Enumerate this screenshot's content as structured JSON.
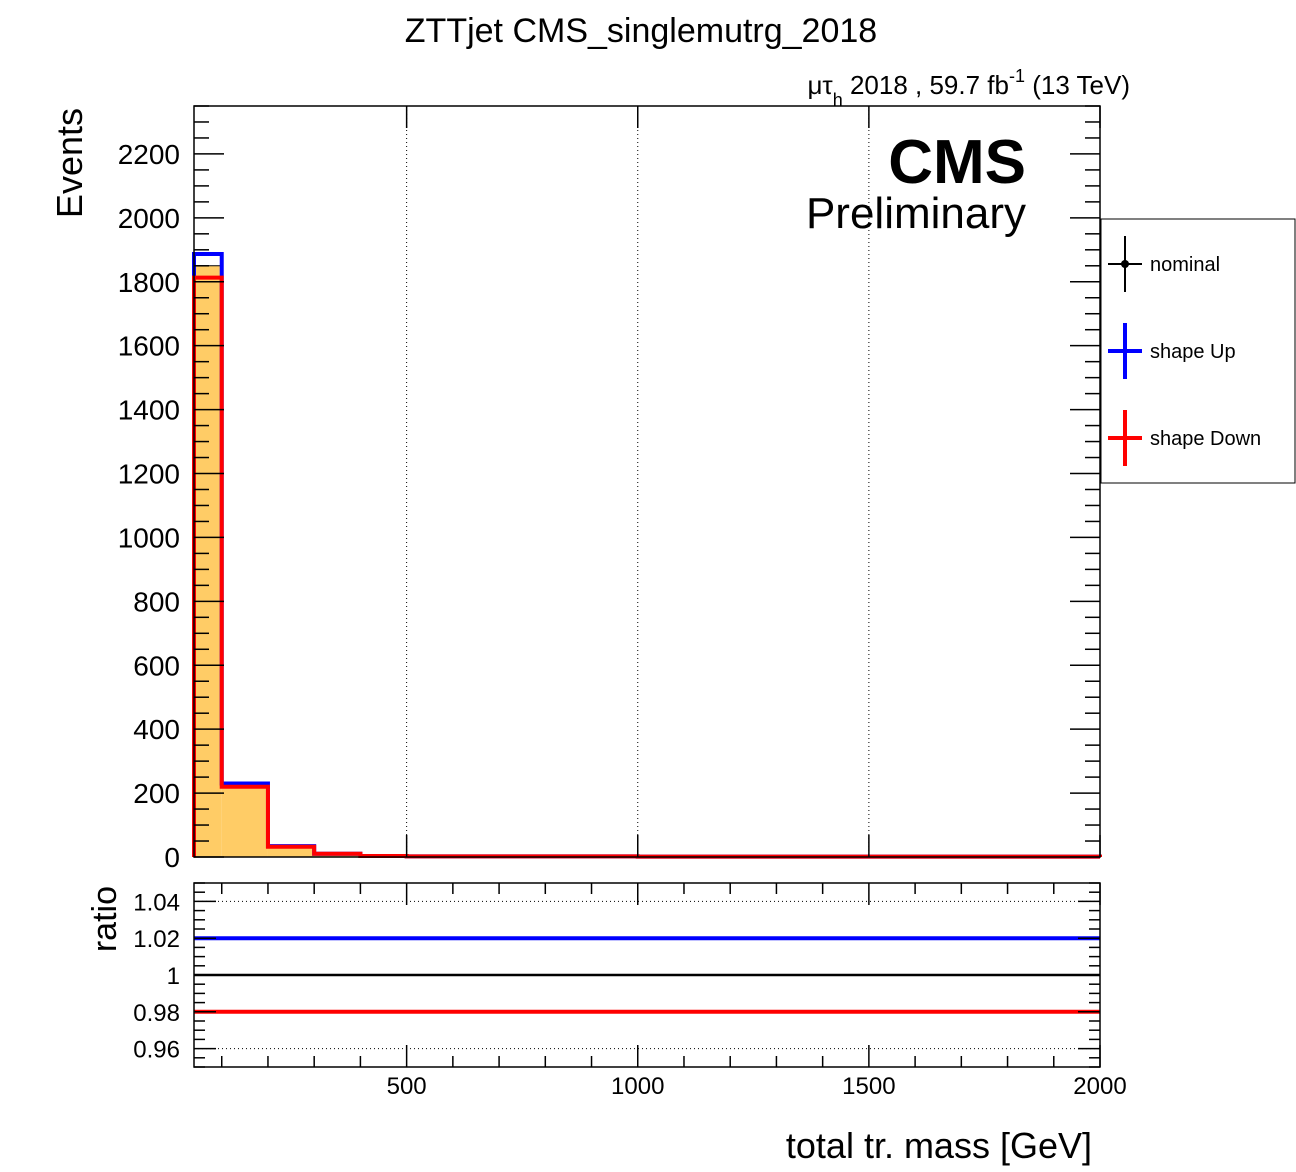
{
  "title": "ZTTjet CMS_singlemutrg_2018",
  "lumi": {
    "channel_mu": "μτ",
    "channel_sub": "h",
    "text": " 2018 , 59.7 fb",
    "sup": "-1",
    "energy": " (13 TeV)"
  },
  "cms_label": "CMS",
  "cms_sublabel": "Preliminary",
  "colors": {
    "nominal": "#000000",
    "up": "#0000ff",
    "down": "#ff0000",
    "fill": "#ffcc66"
  },
  "legend": [
    {
      "label": "nominal",
      "style": "marker",
      "color": "#000000"
    },
    {
      "label": "shape Up",
      "style": "line",
      "color": "#0000ff"
    },
    {
      "label": "shape Down",
      "style": "line",
      "color": "#ff0000"
    }
  ],
  "chart_data": [
    {
      "type": "histogram",
      "ylabel": "Events",
      "xlim": [
        40,
        2000
      ],
      "ylim": [
        0,
        2350
      ],
      "yticks": [
        0,
        200,
        400,
        600,
        800,
        1000,
        1200,
        1400,
        1600,
        1800,
        2000,
        2200
      ],
      "xgrid": [
        500,
        1000,
        1500
      ],
      "bin_edges": [
        40,
        100,
        200,
        300,
        400,
        500,
        1000,
        1500,
        2000
      ],
      "series": [
        {
          "name": "nominal",
          "values": [
            1850,
            225,
            33,
            10,
            3,
            2,
            1,
            1
          ]
        },
        {
          "name": "shape Up",
          "values": [
            1887,
            230,
            34,
            10,
            3,
            2,
            1,
            1
          ]
        },
        {
          "name": "shape Down",
          "values": [
            1813,
            220,
            32,
            10,
            3,
            2,
            1,
            1
          ]
        }
      ]
    },
    {
      "type": "line",
      "ylabel": "ratio",
      "xlabel": "total tr. mass [GeV]",
      "xlim": [
        40,
        2000
      ],
      "ylim": [
        0.95,
        1.05
      ],
      "yticks": [
        0.96,
        0.98,
        1,
        1.02,
        1.04
      ],
      "ytick_labels": [
        "0.96",
        "0.98",
        "1",
        "1.02",
        "1.04"
      ],
      "xticks": [
        500,
        1000,
        1500,
        2000
      ],
      "series": [
        {
          "name": "nominal",
          "value": 1.0
        },
        {
          "name": "shape Up",
          "value": 1.02
        },
        {
          "name": "shape Down",
          "value": 0.98
        }
      ]
    }
  ]
}
